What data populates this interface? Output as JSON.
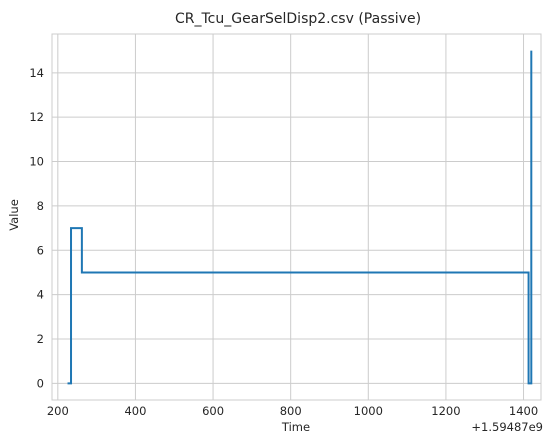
{
  "chart_data": {
    "type": "line",
    "step": true,
    "title": "CR_Tcu_GearSelDisp2.csv (Passive)",
    "xlabel": "Time",
    "ylabel": "Value",
    "x_offset_label": "+1.59487e9",
    "xlim": [
      185,
      1445
    ],
    "ylim": [
      -0.75,
      15.75
    ],
    "xticks": [
      200,
      400,
      600,
      800,
      1000,
      1200,
      1400
    ],
    "xtick_labels": [
      "200",
      "400",
      "600",
      "800",
      "1000",
      "1200",
      "1400"
    ],
    "yticks": [
      0,
      2,
      4,
      6,
      8,
      10,
      12,
      14
    ],
    "ytick_labels": [
      "0",
      "2",
      "4",
      "6",
      "8",
      "10",
      "12",
      "14"
    ],
    "grid": true,
    "line_color": "#1f77b4",
    "series": [
      {
        "x": [
          225,
          234,
          234,
          262,
          262,
          1413,
          1413,
          1420,
          1420
        ],
        "y": [
          0,
          0,
          7,
          7,
          5,
          5,
          0,
          0,
          15
        ]
      }
    ]
  }
}
